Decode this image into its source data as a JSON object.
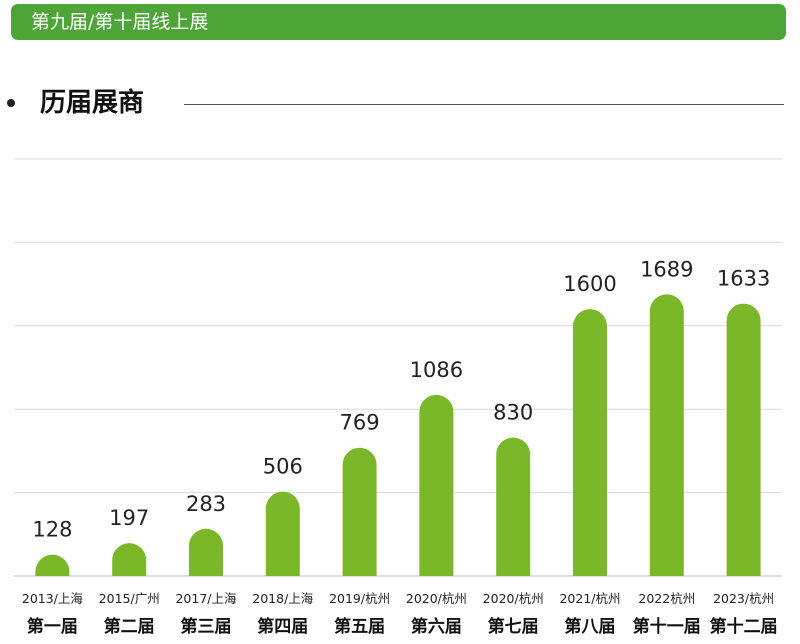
{
  "header": {
    "title": "第九届/第十届线上展"
  },
  "section": {
    "title": "历届展商"
  },
  "colors": {
    "bar": "#7ab829",
    "header": "#4ea537",
    "grid": "#dadada",
    "text": "#222222"
  },
  "chart_data": {
    "type": "bar",
    "title": "",
    "xlabel": "",
    "ylabel": "",
    "ylim": [
      0,
      2500
    ],
    "grid": true,
    "categories": [
      {
        "year": "2013/上海",
        "edition": "第一届"
      },
      {
        "year": "2015/广州",
        "edition": "第二届"
      },
      {
        "year": "2017/上海",
        "edition": "第三届"
      },
      {
        "year": "2018/上海",
        "edition": "第四届"
      },
      {
        "year": "2019/杭州",
        "edition": "第五届"
      },
      {
        "year": "2020/杭州",
        "edition": "第六届"
      },
      {
        "year": "2020/杭州",
        "edition": "第七届"
      },
      {
        "year": "2021/杭州",
        "edition": "第八届"
      },
      {
        "year": "2022杭州",
        "edition": "第十一届"
      },
      {
        "year": "2023/杭州",
        "edition": "第十二届"
      }
    ],
    "values": [
      128,
      197,
      283,
      506,
      769,
      1086,
      830,
      1600,
      1689,
      1633
    ]
  }
}
